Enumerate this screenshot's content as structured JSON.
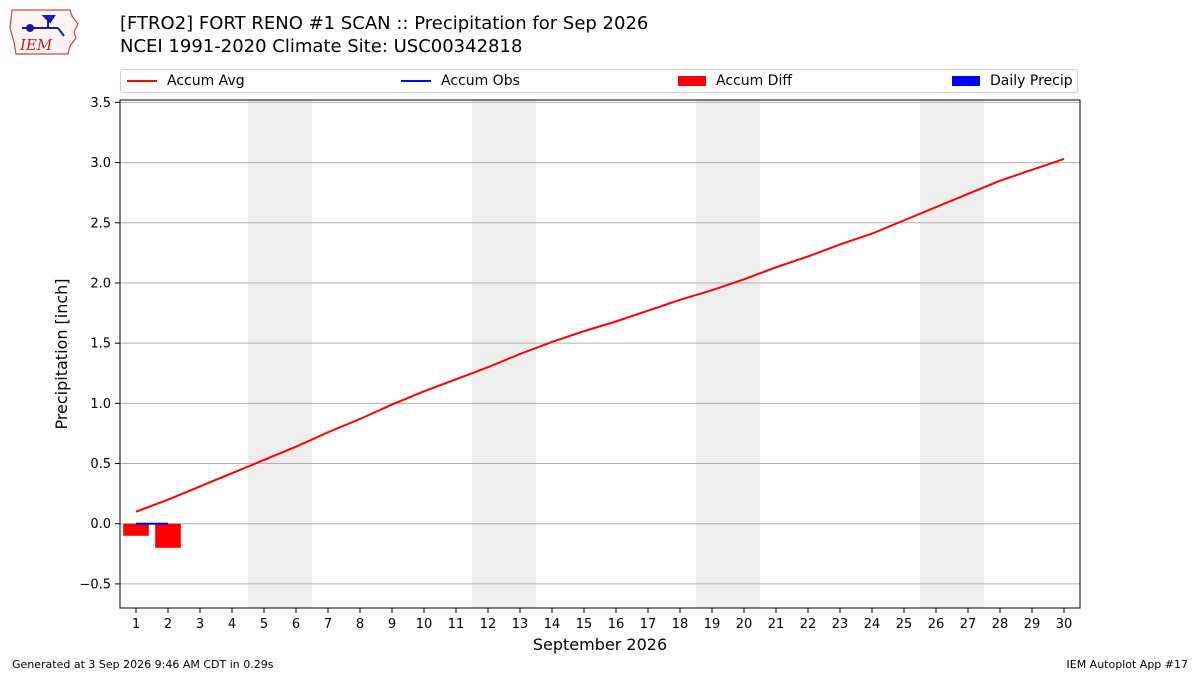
{
  "header": {
    "logo_text": "IEM",
    "title_line1": "[FTRO2] FORT RENO #1 SCAN :: Precipitation for Sep 2026",
    "title_line2": "NCEI 1991-2020 Climate Site: USC00342818"
  },
  "legend": {
    "items": [
      {
        "label": "Accum Avg",
        "kind": "line",
        "color": "#ff0000"
      },
      {
        "label": "Accum Obs",
        "kind": "line",
        "color": "#0000ff"
      },
      {
        "label": "Accum Diff",
        "kind": "box",
        "color": "#ff0000"
      },
      {
        "label": "Daily Precip",
        "kind": "box",
        "color": "#0000ff"
      }
    ]
  },
  "footer": {
    "generated": "Generated at 3 Sep 2026 9:46 AM CDT in 0.29s",
    "app": "IEM Autoplot App #17"
  },
  "chart_data": {
    "type": "line",
    "xlabel": "September 2026",
    "ylabel": "Precipitation [inch]",
    "xlim": [
      0.5,
      30.5
    ],
    "ylim": [
      -0.7,
      3.52
    ],
    "xticks": [
      1,
      2,
      3,
      4,
      5,
      6,
      7,
      8,
      9,
      10,
      11,
      12,
      13,
      14,
      15,
      16,
      17,
      18,
      19,
      20,
      21,
      22,
      23,
      24,
      25,
      26,
      27,
      28,
      29,
      30
    ],
    "yticks": [
      -0.5,
      0.0,
      0.5,
      1.0,
      1.5,
      2.0,
      2.5,
      3.0,
      3.5
    ],
    "ytick_labels": [
      "−0.5",
      "0.0",
      "0.5",
      "1.0",
      "1.5",
      "2.0",
      "2.5",
      "3.0",
      "3.5"
    ],
    "grid": "y",
    "weekend_bands": [
      [
        5,
        6
      ],
      [
        12,
        13
      ],
      [
        19,
        20
      ],
      [
        26,
        27
      ]
    ],
    "band_color": "#eeeeee",
    "series": [
      {
        "name": "Accum Avg",
        "kind": "line",
        "color": "#ff0000",
        "x": [
          1,
          2,
          3,
          4,
          5,
          6,
          7,
          8,
          9,
          10,
          11,
          12,
          13,
          14,
          15,
          16,
          17,
          18,
          19,
          20,
          21,
          22,
          23,
          24,
          25,
          26,
          27,
          28,
          29,
          30
        ],
        "values": [
          0.1,
          0.2,
          0.31,
          0.42,
          0.53,
          0.64,
          0.76,
          0.87,
          0.99,
          1.1,
          1.2,
          1.3,
          1.41,
          1.51,
          1.6,
          1.68,
          1.77,
          1.86,
          1.94,
          2.03,
          2.13,
          2.22,
          2.32,
          2.41,
          2.52,
          2.63,
          2.74,
          2.85,
          2.94,
          3.03
        ]
      },
      {
        "name": "Accum Obs",
        "kind": "line",
        "color": "#0000ff",
        "x": [
          1,
          2
        ],
        "values": [
          0.0,
          0.0
        ]
      },
      {
        "name": "Accum Diff",
        "kind": "bar",
        "color": "#ff0000",
        "x": [
          1,
          2
        ],
        "values": [
          -0.1,
          -0.2
        ]
      },
      {
        "name": "Daily Precip",
        "kind": "bar",
        "color": "#0000ff",
        "x": [
          1,
          2
        ],
        "values": [
          0.0,
          0.0
        ]
      }
    ]
  }
}
